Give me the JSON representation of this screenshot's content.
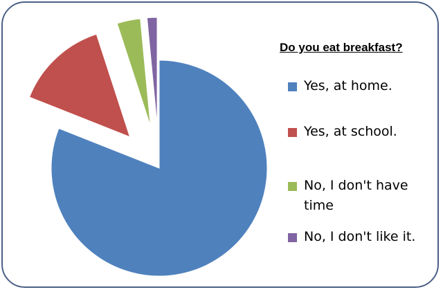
{
  "chart_data": {
    "type": "pie",
    "title": "Do you eat breakfast?",
    "categories": [
      "Yes, at home.",
      "Yes, at school.",
      "No, I don't have time",
      "No, I don't like it."
    ],
    "values": [
      81,
      14,
      3.5,
      1.5
    ],
    "unit": "%",
    "colors": [
      "#4f81bd",
      "#c0504d",
      "#9bbb59",
      "#8064a2"
    ],
    "exploded": [
      false,
      true,
      true,
      true
    ],
    "legend_position": "right"
  }
}
